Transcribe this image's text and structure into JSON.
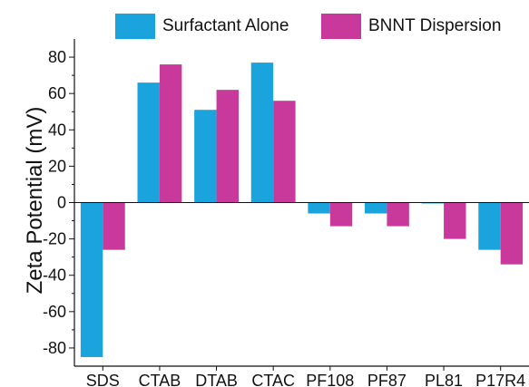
{
  "chart_data": {
    "type": "bar",
    "categories": [
      "SDS",
      "CTAB",
      "DTAB",
      "CTAC",
      "PF108",
      "PF87",
      "PL81",
      "P17R4"
    ],
    "series": [
      {
        "name": "Surfactant Alone",
        "color": "#1aa3dc",
        "values": [
          -85,
          66,
          51,
          77,
          -6,
          -6,
          -0.5,
          -26
        ]
      },
      {
        "name": "BNNT Dispersion",
        "color": "#c8399b",
        "values": [
          -26,
          76,
          62,
          56,
          -13,
          -13,
          -20,
          -34
        ]
      }
    ],
    "ylabel": "Zeta Potential (mV)",
    "ylim": [
      -90,
      90
    ],
    "yticks": [
      80,
      60,
      40,
      20,
      0,
      -20,
      -40,
      -60,
      -80
    ],
    "legend_position": "top",
    "grid": false
  }
}
